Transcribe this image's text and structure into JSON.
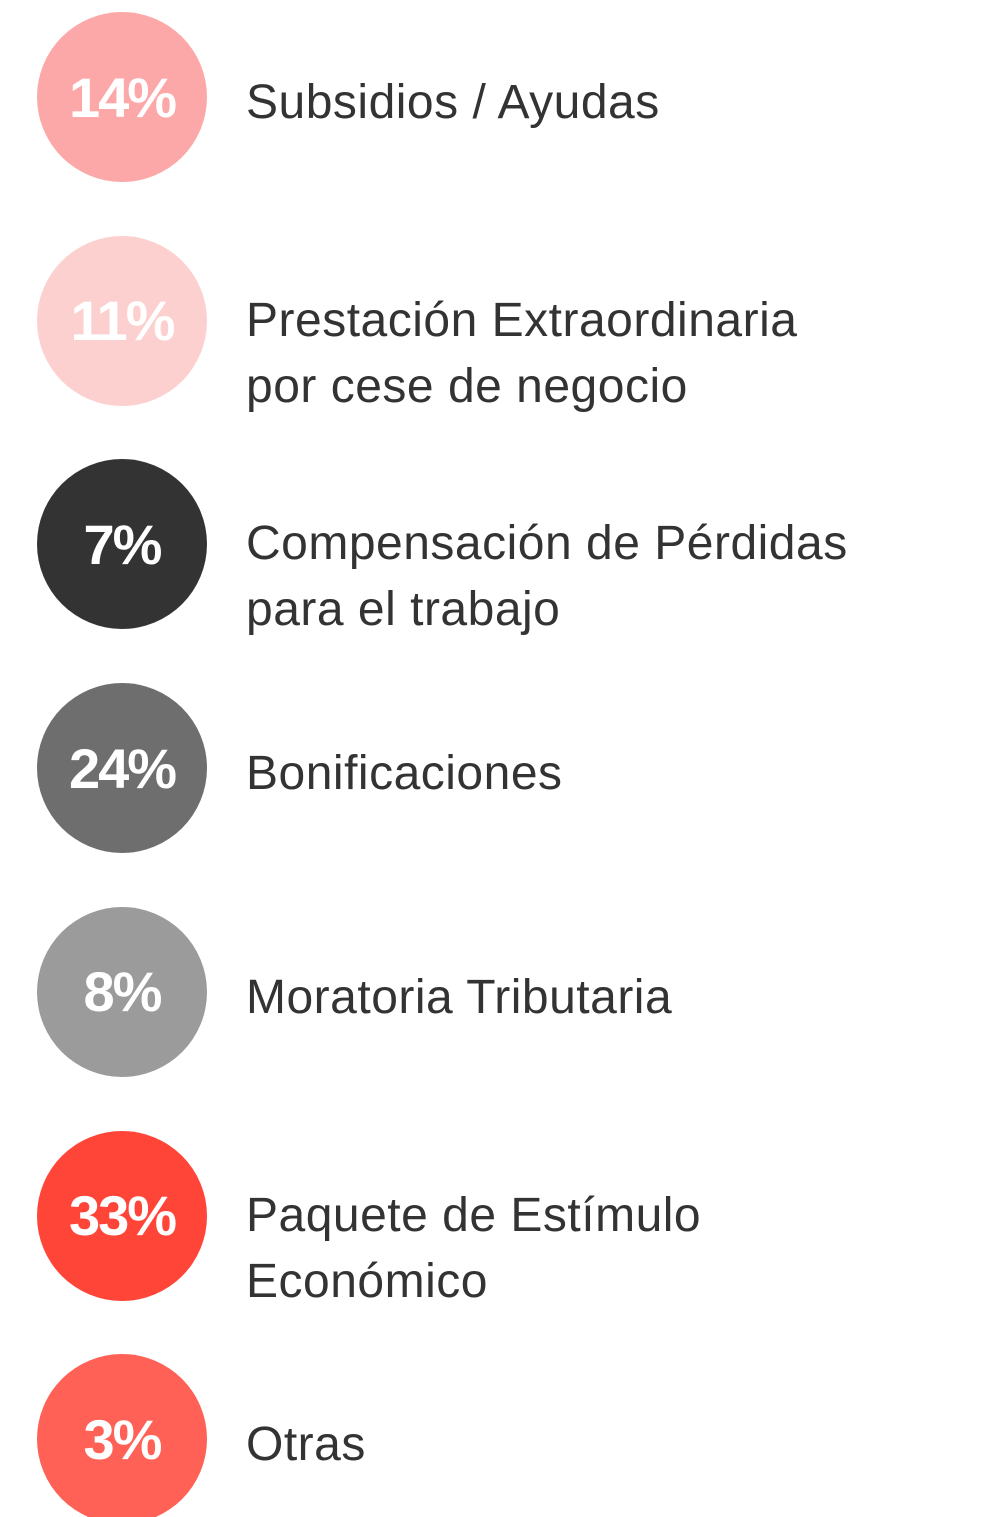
{
  "chart_data": {
    "type": "pie",
    "categories": [
      "Subsidios / Ayudas",
      "Prestación Extraordinaria\npor cese de negocio",
      "Compensación de Pérdidas\npara el trabajo",
      "Bonificaciones",
      "Moratoria Tributaria",
      "Paquete de Estímulo\nEconómico",
      "Otras"
    ],
    "values": [
      14,
      11,
      7,
      24,
      8,
      33,
      3
    ],
    "value_labels": [
      "14%",
      "11%",
      "7%",
      "24%",
      "8%",
      "33%",
      "3%"
    ],
    "colors": [
      "#fda8a8",
      "#fdd0d0",
      "#333333",
      "#6e6e6e",
      "#9b9b9b",
      "#ff4538",
      "#ff6157"
    ]
  }
}
